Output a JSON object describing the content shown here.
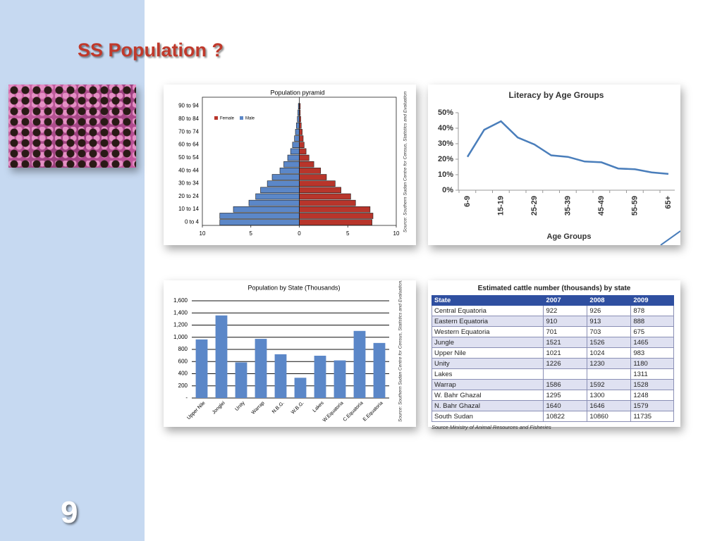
{
  "title": "SS Population ?",
  "page_number": "9",
  "chart_data": [
    {
      "type": "pyramid",
      "title": "Population pyramid",
      "source": "Source: Southern Sudan Centre for Census, Statistics and Evaluation",
      "categories": [
        "0 to 4",
        null,
        "10 to 14",
        null,
        "20 to 24",
        null,
        "30 to 34",
        null,
        "40 to 44",
        null,
        "50 to 54",
        null,
        "60 to 64",
        null,
        "70 to 74",
        null,
        "80 to 84",
        null,
        "90 to 94"
      ],
      "series": [
        {
          "name": "Female",
          "color": "#b8352b",
          "values": [
            7.5,
            7.6,
            7.3,
            5.8,
            5.3,
            4.3,
            3.7,
            2.8,
            2.2,
            1.5,
            1.0,
            0.7,
            0.5,
            0.4,
            0.3,
            0.2,
            0.15,
            0.1,
            0.1
          ]
        },
        {
          "name": "Male",
          "color": "#5b87c8",
          "values": [
            -8.2,
            -8.2,
            -6.8,
            -5.2,
            -4.5,
            -4.0,
            -3.3,
            -2.8,
            -2.0,
            -1.6,
            -1.2,
            -0.9,
            -0.7,
            -0.5,
            -0.4,
            -0.3,
            -0.2,
            -0.15,
            -0.1
          ]
        }
      ],
      "xlim": [
        -10,
        10
      ],
      "xticks": [
        {
          "value": -10,
          "label": "10"
        },
        {
          "value": -5,
          "label": "5"
        },
        0,
        5,
        10
      ]
    },
    {
      "type": "line",
      "title": "Literacy by Age Groups",
      "xlabel": "Age Groups",
      "categories": [
        "6-9",
        null,
        "15-19",
        null,
        "25-29",
        null,
        "35-39",
        null,
        "45-49",
        null,
        "55-59",
        null,
        "65+"
      ],
      "values": [
        21.5,
        39,
        44.5,
        34,
        29.5,
        22.5,
        21.5,
        18.5,
        18,
        14,
        13.5,
        11.5,
        10.5
      ],
      "color": "#4a7ebb",
      "ylim": [
        0,
        50
      ],
      "yticks": [
        {
          "value": 0,
          "label": "0%"
        },
        {
          "value": 10,
          "label": "10%"
        },
        {
          "value": 20,
          "label": "20%"
        },
        {
          "value": 30,
          "label": "30%"
        },
        {
          "value": 40,
          "label": "40%"
        },
        {
          "value": 50,
          "label": "50%"
        }
      ]
    },
    {
      "type": "bar",
      "title": "Population by State (Thousands)",
      "source": "Source: Southern Sudan Centre for Census, Statistics and Evaluation.",
      "categories": [
        "Upper Nile",
        "Jonglei",
        "Unity",
        "Warrap",
        "N.B.G.",
        "W.B.G.",
        "Lakes",
        "W.Equatoria",
        "C.Equatoria",
        "E.Equatoria"
      ],
      "values": [
        964,
        1359,
        586,
        973,
        720,
        333,
        696,
        619,
        1104,
        906
      ],
      "color": "#5b87c8",
      "ylim": [
        0,
        1600
      ],
      "yticks": [
        {
          "value": 0,
          "label": "-"
        },
        200,
        400,
        600,
        800,
        {
          "value": 1000,
          "label": "1,000"
        },
        {
          "value": 1200,
          "label": "1,200"
        },
        {
          "value": 1400,
          "label": "1,400"
        },
        {
          "value": 1600,
          "label": "1,600"
        }
      ],
      "grid": true
    }
  ],
  "table": {
    "title": "Estimated cattle number (thousands) by state",
    "header": [
      "State",
      "2007",
      "2008",
      "2009"
    ],
    "rows": [
      [
        "Central Equatoria",
        922,
        926,
        878
      ],
      [
        "Eastern Equatoria",
        910,
        913,
        888
      ],
      [
        "Western Equatoria",
        701,
        703,
        675
      ],
      [
        "Jungle",
        1521,
        1526,
        1465
      ],
      [
        "Upper Nile",
        1021,
        1024,
        983
      ],
      [
        "Unity",
        1226,
        1230,
        1180
      ],
      [
        "Lakes",
        null,
        null,
        1311
      ],
      [
        "Warrap",
        1586,
        1592,
        1528
      ],
      [
        "W. Bahr Ghazal",
        1295,
        1300,
        1248
      ],
      [
        "N. Bahr Ghazal",
        1640,
        1646,
        1579
      ],
      [
        "South Sudan",
        10822,
        10860,
        11735
      ]
    ],
    "source": "Source Ministry of Animal Resources and Fisheries"
  }
}
